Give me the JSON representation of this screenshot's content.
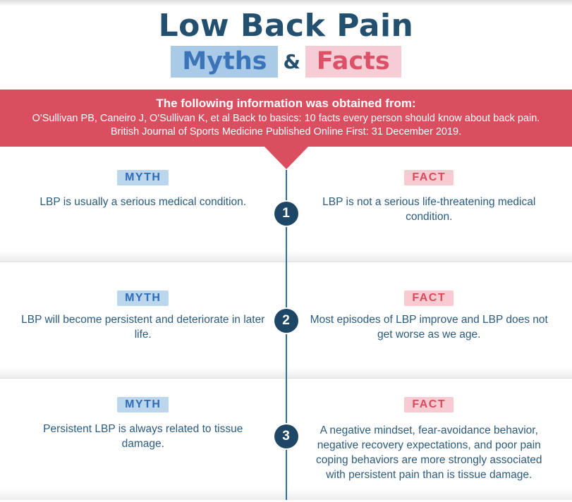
{
  "header": {
    "title": "Low Back Pain",
    "myths": "Myths",
    "ampersand": "&",
    "facts": "Facts"
  },
  "source_banner": {
    "heading": "The following information was obtained from:",
    "citation": "O'Sullivan PB, Caneiro J, O'Sullivan K, et al Back to basics: 10 facts every person should know about back pain. British Journal of Sports Medicine Published Online First: 31 December 2019."
  },
  "labels": {
    "myth": "MYTH",
    "fact": "FACT"
  },
  "rows": [
    {
      "number": "1",
      "myth": "LBP is usually a serious medical condition.",
      "fact": "LBP is not a serious life-threatening medical condition."
    },
    {
      "number": "2",
      "myth": "LBP will become persistent and deteriorate in later life.",
      "fact": "Most episodes of LBP improve and LBP does not get worse as we age."
    },
    {
      "number": "3",
      "myth": "Persistent LBP is always related to tissue damage.",
      "fact": "A negative mindset, fear-avoidance behavior, negative recovery expectations, and poor pain coping behaviors are more strongly associated with persistent pain than is tissue damage."
    }
  ],
  "colors": {
    "title_navy": "#24506F",
    "myths_text": "#3B74B8",
    "myths_highlight": "#A9CBE8",
    "facts_text": "#DD5168",
    "facts_highlight": "#F7CDD5",
    "banner_red": "#D94F5F",
    "timeline_blue": "#2F6EA5",
    "number_circle_navy": "#1E4765",
    "body_text": "#2B5B7E",
    "myth_badge_bg": "#BCD6EE",
    "fact_badge_bg": "#F7CBD1"
  }
}
